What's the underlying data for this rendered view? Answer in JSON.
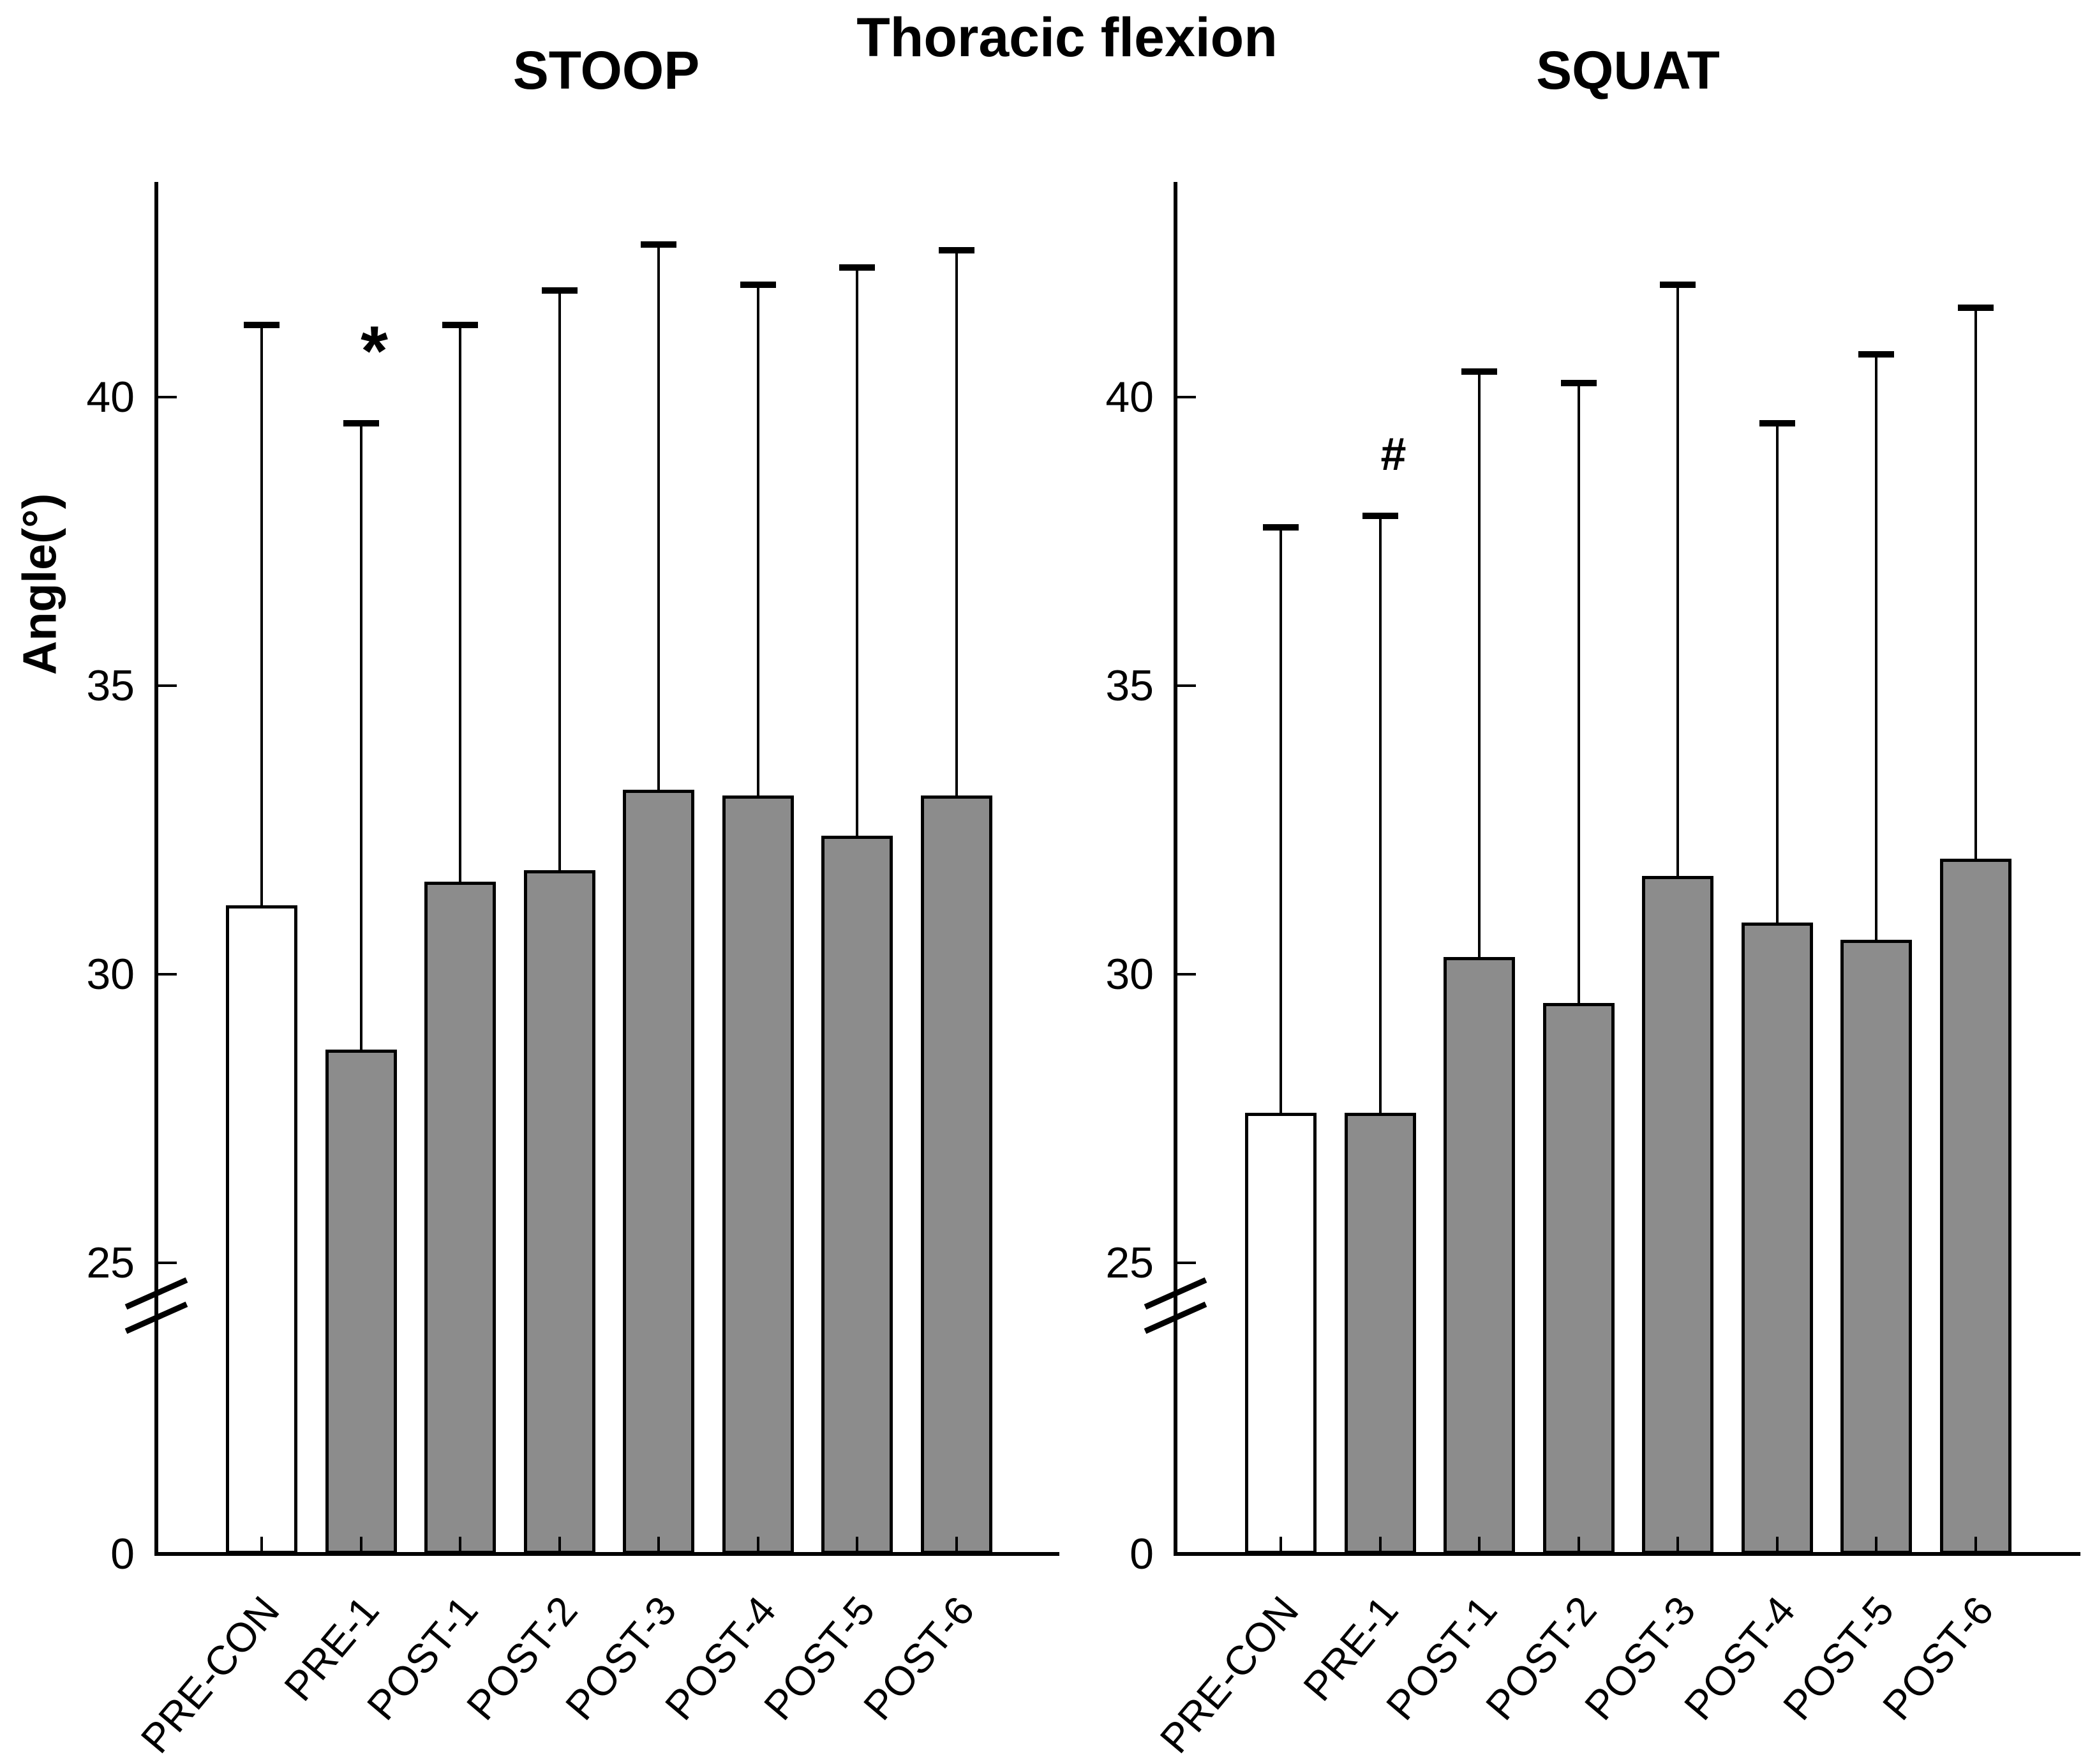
{
  "chart_data": {
    "type": "bar",
    "title": "Thoracic flexion",
    "ylabel": "Angle(°)",
    "categories": [
      "PRE-CON",
      "PRE-1",
      "POST-1",
      "POST-2",
      "POST-3",
      "POST-4",
      "POST-5",
      "POST-6"
    ],
    "yticks": [
      0,
      25,
      30,
      35,
      40
    ],
    "axis_break_between": [
      0,
      25
    ],
    "grid": false,
    "legend": "none",
    "bar_fill_colors": {
      "PRE-CON": "#ffffff",
      "others": "#8c8c8c"
    },
    "panels": [
      {
        "label": "STOOP",
        "means": [
          31.2,
          28.7,
          31.6,
          31.8,
          33.2,
          33.1,
          32.4,
          33.1
        ],
        "upper_error_tops": [
          41.3,
          39.6,
          41.3,
          41.9,
          42.7,
          42.0,
          42.3,
          42.6
        ],
        "annotation": {
          "symbol": "*",
          "above_category": "PRE-1",
          "y_value": 40.8
        }
      },
      {
        "label": "SQUAT",
        "means": [
          27.6,
          27.6,
          30.3,
          29.5,
          31.7,
          30.9,
          30.6,
          32.0
        ],
        "upper_error_tops": [
          37.8,
          38.0,
          40.5,
          40.3,
          42.0,
          39.6,
          40.8,
          41.6
        ],
        "annotation": {
          "symbol": "#",
          "above_category": "PRE-1",
          "y_value": 39.0
        }
      }
    ]
  }
}
